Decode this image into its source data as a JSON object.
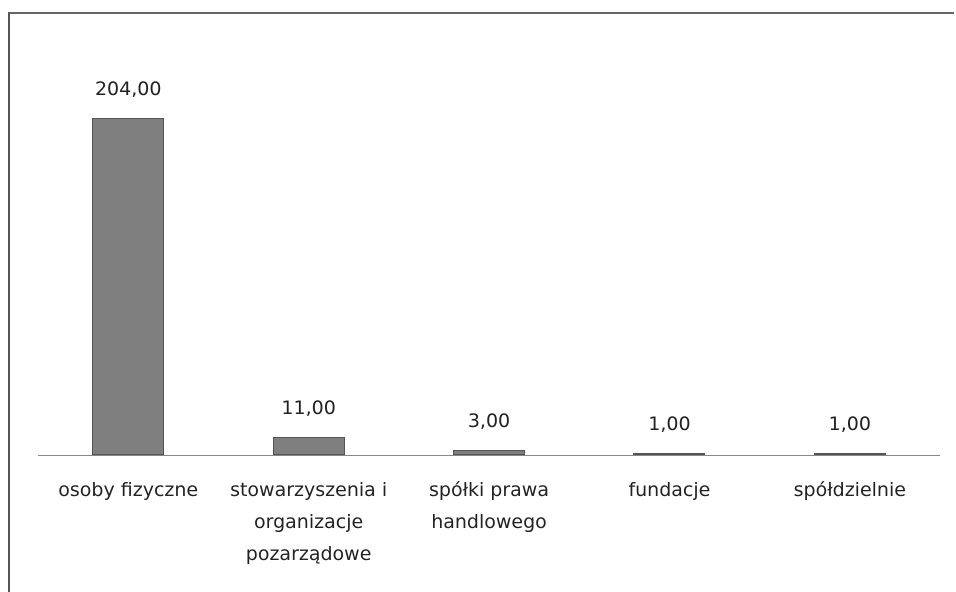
{
  "chart_data": {
    "type": "bar",
    "categories": [
      "osoby fizyczne",
      "stowarzyszenia i organizacje pozarządowe",
      "spółki prawa handlowego",
      "fundacje",
      "spółdzielnie"
    ],
    "values": [
      204,
      11,
      3,
      1,
      1
    ],
    "value_labels": [
      "204,00",
      "11,00",
      "3,00",
      "1,00",
      "1,00"
    ],
    "color": "#7f7f7f"
  }
}
